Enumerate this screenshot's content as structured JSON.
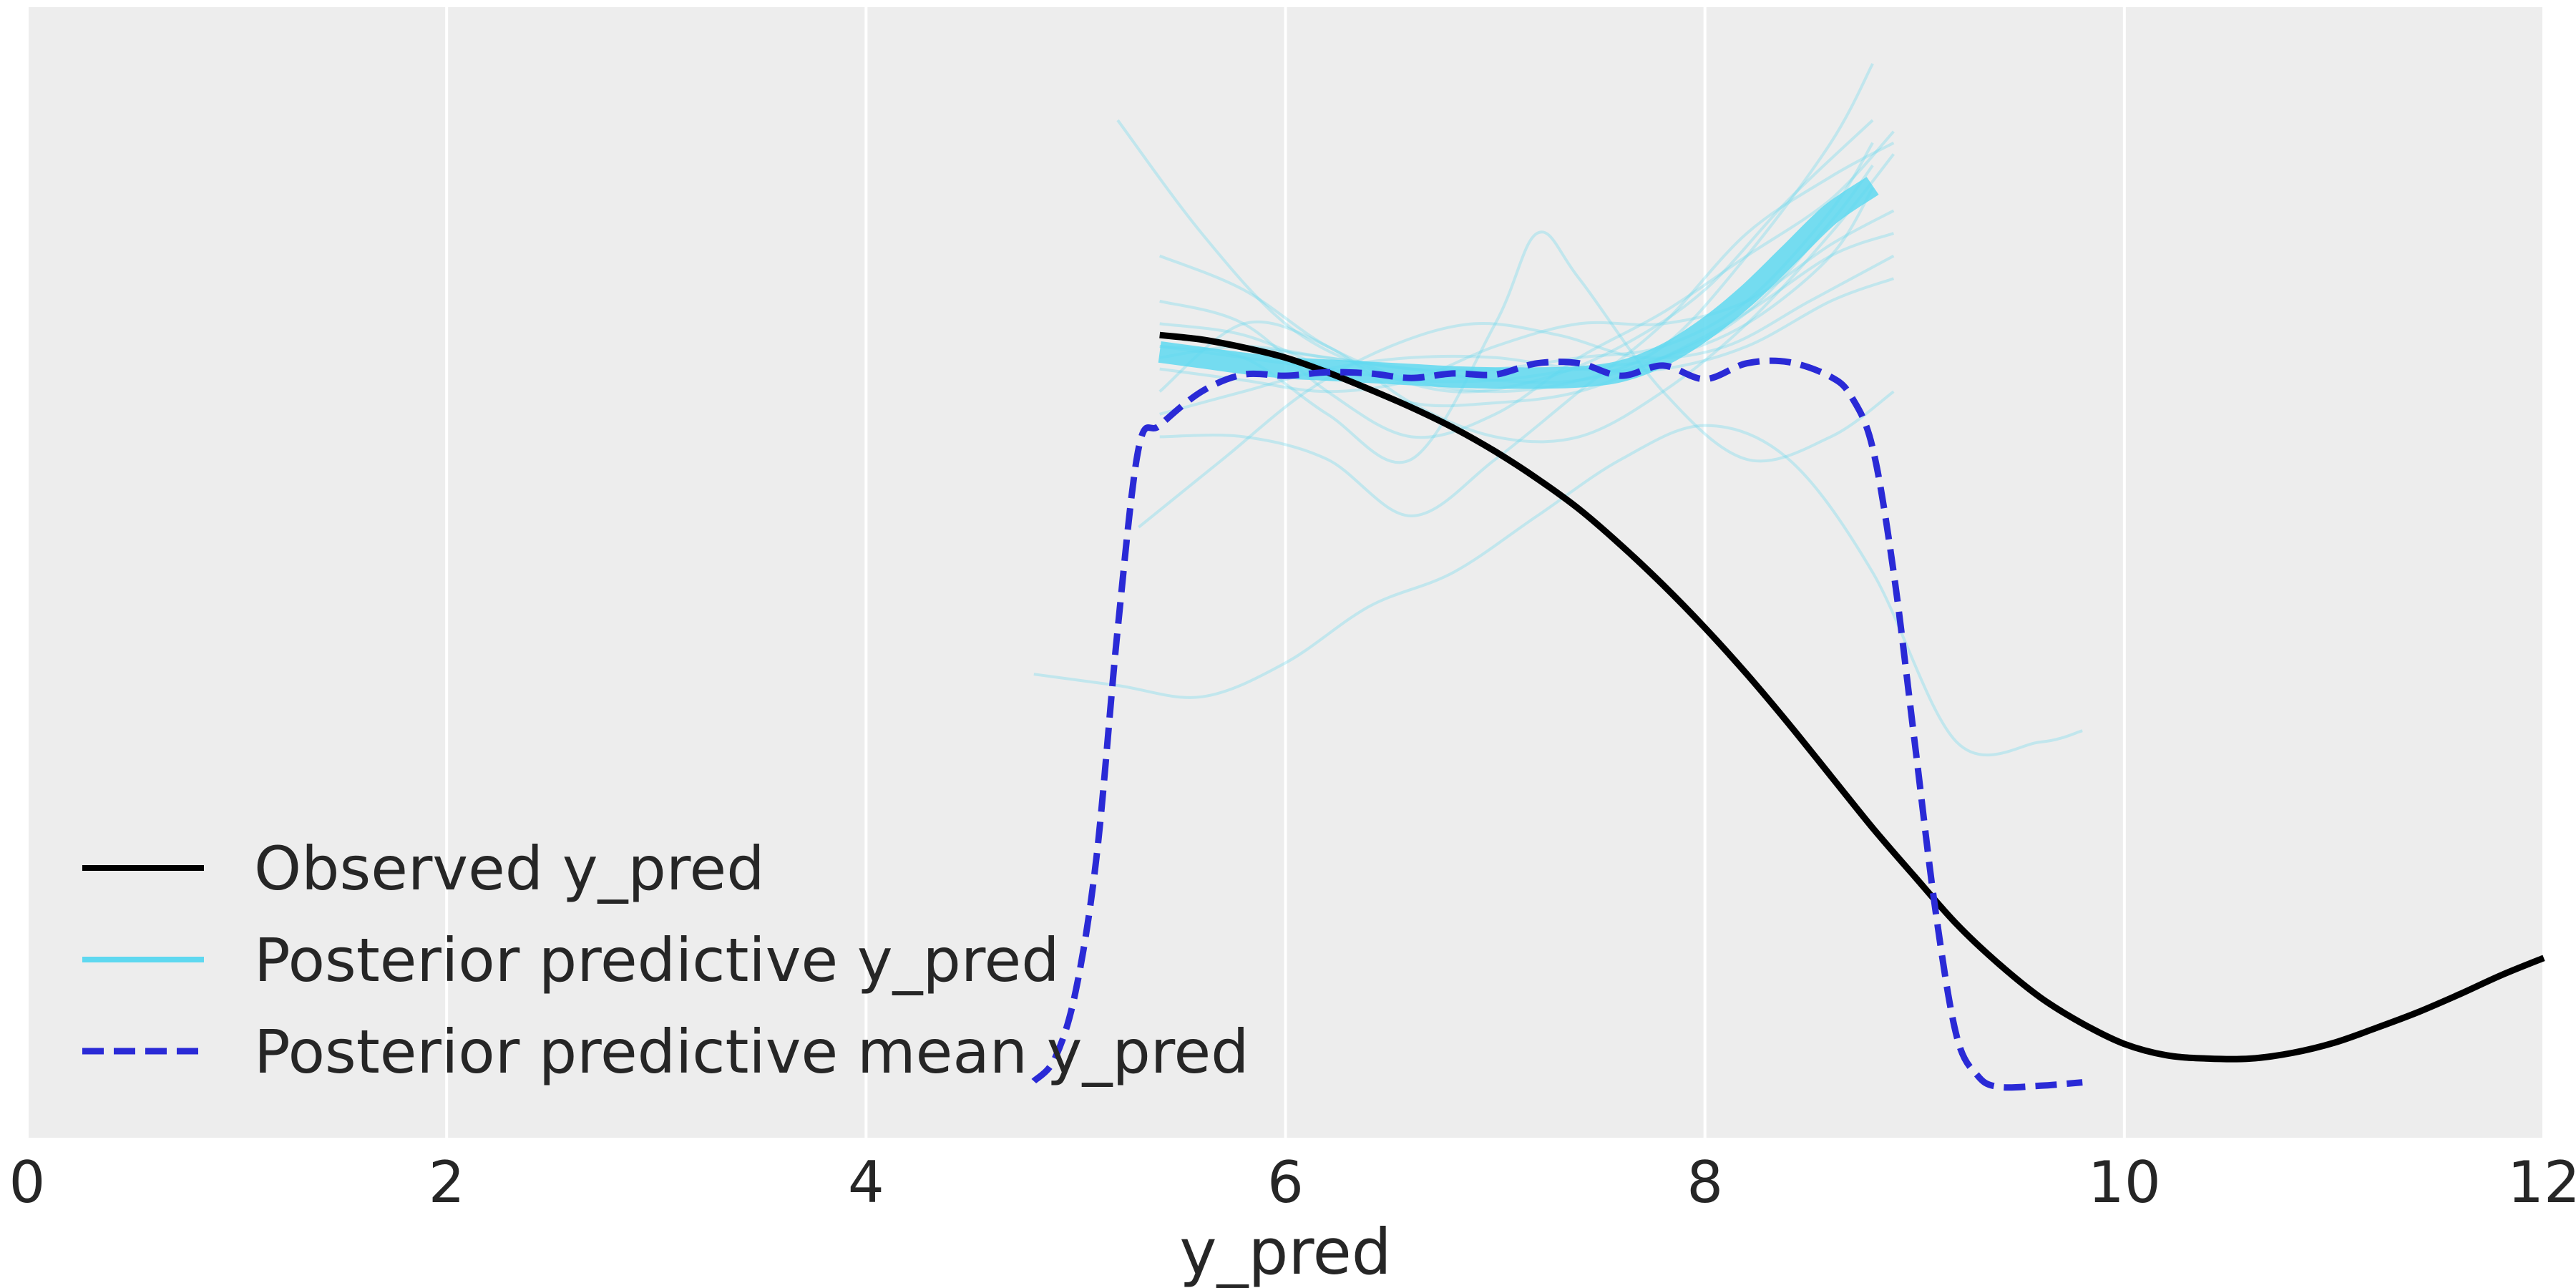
{
  "chart_data": {
    "type": "line",
    "title": "",
    "xlabel": "y_pred",
    "ylabel": "",
    "xlim": [
      0,
      12
    ],
    "ylim": [
      0,
      1
    ],
    "xticks": [
      0,
      2,
      4,
      6,
      8,
      10,
      12
    ],
    "xtick_labels": [
      "0",
      "2",
      "4",
      "6",
      "8",
      "10",
      "12"
    ],
    "yticks_visible": false,
    "grid": true,
    "background": "#ededed",
    "legend_position": "lower-left",
    "legend": [
      {
        "label": "Observed y_pred",
        "color": "#000000",
        "style": "solid"
      },
      {
        "label": "Posterior predictive y_pred",
        "color": "#5ed8f0",
        "style": "solid"
      },
      {
        "label": "Posterior predictive mean y_pred",
        "color": "#2a2ad6",
        "style": "dashed"
      }
    ],
    "series": [
      {
        "name": "Observed y_pred",
        "color": "#000000",
        "style": "solid",
        "x": [
          5.4,
          5.6,
          5.8,
          6.0,
          6.2,
          6.4,
          6.6,
          6.8,
          7.0,
          7.2,
          7.4,
          7.6,
          7.8,
          8.0,
          8.2,
          8.4,
          8.6,
          8.8,
          9.0,
          9.2,
          9.4,
          9.6,
          9.8,
          10.0,
          10.2,
          10.4,
          10.6,
          10.8,
          11.0,
          11.2,
          11.4,
          11.6,
          11.8,
          12.0
        ],
        "y": [
          0.71,
          0.706,
          0.699,
          0.69,
          0.677,
          0.662,
          0.646,
          0.628,
          0.607,
          0.583,
          0.556,
          0.524,
          0.489,
          0.451,
          0.41,
          0.366,
          0.32,
          0.274,
          0.231,
          0.189,
          0.154,
          0.124,
          0.101,
          0.083,
          0.073,
          0.07,
          0.07,
          0.075,
          0.084,
          0.097,
          0.111,
          0.127,
          0.144,
          0.159
        ]
      },
      {
        "name": "Posterior predictive y_pred",
        "color": "#5ed8f0",
        "style": "solid",
        "x": [
          5.4,
          5.6,
          5.8,
          6.0,
          6.2,
          6.4,
          6.6,
          6.8,
          7.0,
          7.2,
          7.4,
          7.6,
          7.8,
          8.0,
          8.2,
          8.4,
          8.6,
          8.8
        ],
        "y": [
          0.695,
          0.69,
          0.685,
          0.681,
          0.679,
          0.677,
          0.675,
          0.673,
          0.672,
          0.672,
          0.673,
          0.678,
          0.692,
          0.715,
          0.745,
          0.781,
          0.817,
          0.842
        ]
      },
      {
        "name": "Posterior predictive mean y_pred",
        "color": "#2a2ad6",
        "style": "dashed",
        "x": [
          4.8,
          4.9,
          5.0,
          5.1,
          5.2,
          5.3,
          5.4,
          5.6,
          5.8,
          6.0,
          6.2,
          6.4,
          6.6,
          6.8,
          7.0,
          7.2,
          7.4,
          7.6,
          7.8,
          8.0,
          8.2,
          8.4,
          8.6,
          8.7,
          8.8,
          8.9,
          9.0,
          9.1,
          9.2,
          9.3,
          9.4,
          9.6,
          9.8
        ],
        "y": [
          0.05,
          0.07,
          0.13,
          0.25,
          0.45,
          0.61,
          0.63,
          0.66,
          0.675,
          0.674,
          0.677,
          0.676,
          0.672,
          0.676,
          0.675,
          0.685,
          0.685,
          0.674,
          0.683,
          0.671,
          0.685,
          0.686,
          0.673,
          0.655,
          0.61,
          0.5,
          0.35,
          0.2,
          0.09,
          0.055,
          0.045,
          0.046,
          0.049
        ]
      }
    ],
    "sample_curves": [
      {
        "x": [
          5.2,
          5.6,
          6.0,
          6.4,
          6.8,
          7.2,
          7.6,
          8.0,
          8.4,
          8.8
        ],
        "y": [
          0.9,
          0.8,
          0.72,
          0.68,
          0.66,
          0.67,
          0.7,
          0.75,
          0.83,
          0.9
        ]
      },
      {
        "x": [
          5.3,
          5.7,
          6.1,
          6.5,
          6.9,
          7.3,
          7.7,
          8.1,
          8.5,
          8.9
        ],
        "y": [
          0.54,
          0.6,
          0.66,
          0.7,
          0.72,
          0.71,
          0.69,
          0.7,
          0.74,
          0.78
        ]
      },
      {
        "x": [
          4.8,
          5.2,
          5.6,
          6.0,
          6.4,
          6.8,
          7.2,
          7.6,
          8.0,
          8.4,
          8.8,
          9.2,
          9.6,
          9.8
        ],
        "y": [
          0.41,
          0.4,
          0.39,
          0.42,
          0.47,
          0.5,
          0.55,
          0.6,
          0.63,
          0.6,
          0.5,
          0.35,
          0.35,
          0.36
        ]
      },
      {
        "x": [
          5.4,
          5.8,
          6.2,
          6.6,
          7.0,
          7.4,
          7.8,
          8.2,
          8.6,
          8.9
        ],
        "y": [
          0.62,
          0.62,
          0.6,
          0.55,
          0.6,
          0.66,
          0.72,
          0.8,
          0.85,
          0.88
        ]
      },
      {
        "x": [
          5.4,
          5.8,
          6.2,
          6.6,
          7.0,
          7.2,
          7.4,
          7.8,
          8.2,
          8.6,
          8.9
        ],
        "y": [
          0.7,
          0.69,
          0.64,
          0.6,
          0.72,
          0.8,
          0.76,
          0.66,
          0.6,
          0.62,
          0.66
        ]
      },
      {
        "x": [
          5.4,
          5.8,
          6.2,
          6.6,
          7.0,
          7.4,
          7.8,
          8.2,
          8.6,
          8.9
        ],
        "y": [
          0.74,
          0.72,
          0.66,
          0.62,
          0.64,
          0.69,
          0.73,
          0.78,
          0.83,
          0.89
        ]
      },
      {
        "x": [
          5.4,
          5.8,
          6.2,
          6.6,
          7.0,
          7.4,
          7.8,
          8.2,
          8.6,
          8.9
        ],
        "y": [
          0.66,
          0.72,
          0.7,
          0.65,
          0.62,
          0.62,
          0.66,
          0.72,
          0.8,
          0.87
        ]
      },
      {
        "x": [
          5.4,
          5.8,
          6.2,
          6.6,
          7.0,
          7.4,
          7.8,
          8.2,
          8.6,
          8.8
        ],
        "y": [
          0.69,
          0.7,
          0.69,
          0.68,
          0.68,
          0.69,
          0.7,
          0.74,
          0.82,
          0.88
        ]
      },
      {
        "x": [
          5.4,
          5.8,
          6.2,
          6.6,
          7.0,
          7.4,
          7.8,
          8.2,
          8.6,
          8.8
        ],
        "y": [
          0.7,
          0.69,
          0.68,
          0.67,
          0.67,
          0.68,
          0.69,
          0.72,
          0.78,
          0.84
        ]
      },
      {
        "x": [
          5.4,
          5.8,
          6.2,
          6.6,
          7.0,
          7.4,
          7.8,
          8.2,
          8.6,
          8.9
        ],
        "y": [
          0.72,
          0.71,
          0.68,
          0.65,
          0.65,
          0.66,
          0.69,
          0.73,
          0.78,
          0.8
        ]
      },
      {
        "x": [
          5.4,
          5.8,
          6.2,
          6.6,
          7.0,
          7.4,
          7.8,
          8.2,
          8.6,
          8.9
        ],
        "y": [
          0.68,
          0.67,
          0.66,
          0.67,
          0.7,
          0.72,
          0.72,
          0.74,
          0.79,
          0.82
        ]
      },
      {
        "x": [
          5.4,
          5.8,
          6.2,
          6.6,
          7.0,
          7.4,
          7.8,
          8.2,
          8.6,
          8.8
        ],
        "y": [
          0.78,
          0.75,
          0.7,
          0.67,
          0.66,
          0.67,
          0.7,
          0.78,
          0.88,
          0.95
        ]
      },
      {
        "x": [
          5.4,
          5.8,
          6.2,
          6.6,
          7.0,
          7.4,
          7.8,
          8.2,
          8.6,
          8.9
        ],
        "y": [
          0.64,
          0.66,
          0.68,
          0.69,
          0.69,
          0.68,
          0.68,
          0.7,
          0.74,
          0.76
        ]
      },
      {
        "x": [
          5.4,
          5.8,
          6.2,
          6.6,
          7.0,
          7.4,
          7.8,
          8.2,
          8.6,
          8.8
        ],
        "y": [
          0.71,
          0.7,
          0.69,
          0.68,
          0.67,
          0.67,
          0.69,
          0.73,
          0.81,
          0.86
        ]
      }
    ]
  }
}
